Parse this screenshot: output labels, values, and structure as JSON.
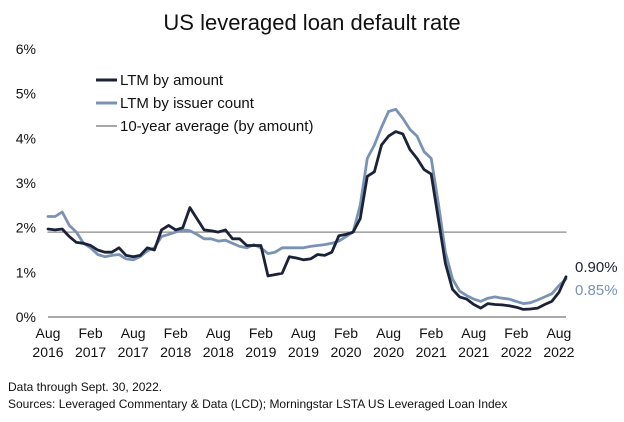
{
  "chart_data": {
    "type": "line",
    "title": "US leveraged loan default rate",
    "xlabel": "",
    "ylabel": "",
    "ylim": [
      0,
      6
    ],
    "y_ticks": [
      "0%",
      "1%",
      "2%",
      "3%",
      "4%",
      "5%",
      "6%"
    ],
    "x_range": [
      "2016-08",
      "2022-09"
    ],
    "x_ticks": [
      {
        "month": "Aug",
        "year": "2016",
        "date": "2016-08"
      },
      {
        "month": "Feb",
        "year": "2017",
        "date": "2017-02"
      },
      {
        "month": "Aug",
        "year": "2017",
        "date": "2017-08"
      },
      {
        "month": "Feb",
        "year": "2018",
        "date": "2018-02"
      },
      {
        "month": "Aug",
        "year": "2018",
        "date": "2018-08"
      },
      {
        "month": "Feb",
        "year": "2019",
        "date": "2019-02"
      },
      {
        "month": "Aug",
        "year": "2019",
        "date": "2019-08"
      },
      {
        "month": "Feb",
        "year": "2020",
        "date": "2020-02"
      },
      {
        "month": "Aug",
        "year": "2020",
        "date": "2020-08"
      },
      {
        "month": "Feb",
        "year": "2021",
        "date": "2021-02"
      },
      {
        "month": "Aug",
        "year": "2021",
        "date": "2021-08"
      },
      {
        "month": "Feb",
        "year": "2022",
        "date": "2022-02"
      },
      {
        "month": "Aug",
        "year": "2022",
        "date": "2022-08"
      }
    ],
    "grid": false,
    "legend_position": "top-left",
    "series": [
      {
        "name": "LTM by amount",
        "color": "#1b2238",
        "points": [
          [
            "2016-08",
            1.97
          ],
          [
            "2016-09",
            1.95
          ],
          [
            "2016-10",
            1.97
          ],
          [
            "2016-11",
            1.8
          ],
          [
            "2016-12",
            1.67
          ],
          [
            "2017-01",
            1.65
          ],
          [
            "2017-02",
            1.6
          ],
          [
            "2017-03",
            1.5
          ],
          [
            "2017-04",
            1.45
          ],
          [
            "2017-05",
            1.45
          ],
          [
            "2017-06",
            1.55
          ],
          [
            "2017-07",
            1.38
          ],
          [
            "2017-08",
            1.35
          ],
          [
            "2017-09",
            1.38
          ],
          [
            "2017-10",
            1.55
          ],
          [
            "2017-11",
            1.5
          ],
          [
            "2017-12",
            1.95
          ],
          [
            "2018-01",
            2.05
          ],
          [
            "2018-02",
            1.95
          ],
          [
            "2018-03",
            2.0
          ],
          [
            "2018-04",
            2.45
          ],
          [
            "2018-05",
            2.2
          ],
          [
            "2018-06",
            1.95
          ],
          [
            "2018-07",
            1.93
          ],
          [
            "2018-08",
            1.9
          ],
          [
            "2018-09",
            1.95
          ],
          [
            "2018-10",
            1.75
          ],
          [
            "2018-11",
            1.75
          ],
          [
            "2018-12",
            1.6
          ],
          [
            "2019-01",
            1.6
          ],
          [
            "2019-02",
            1.6
          ],
          [
            "2019-03",
            0.92
          ],
          [
            "2019-04",
            0.95
          ],
          [
            "2019-05",
            0.98
          ],
          [
            "2019-06",
            1.35
          ],
          [
            "2019-07",
            1.32
          ],
          [
            "2019-08",
            1.28
          ],
          [
            "2019-09",
            1.3
          ],
          [
            "2019-10",
            1.4
          ],
          [
            "2019-11",
            1.38
          ],
          [
            "2019-12",
            1.45
          ],
          [
            "2020-01",
            1.82
          ],
          [
            "2020-02",
            1.85
          ],
          [
            "2020-03",
            1.9
          ],
          [
            "2020-04",
            2.2
          ],
          [
            "2020-05",
            3.15
          ],
          [
            "2020-06",
            3.25
          ],
          [
            "2020-07",
            3.85
          ],
          [
            "2020-08",
            4.05
          ],
          [
            "2020-09",
            4.15
          ],
          [
            "2020-10",
            4.1
          ],
          [
            "2020-11",
            3.75
          ],
          [
            "2020-12",
            3.55
          ],
          [
            "2021-01",
            3.3
          ],
          [
            "2021-02",
            3.2
          ],
          [
            "2021-03",
            2.2
          ],
          [
            "2021-04",
            1.2
          ],
          [
            "2021-05",
            0.62
          ],
          [
            "2021-06",
            0.45
          ],
          [
            "2021-07",
            0.4
          ],
          [
            "2021-08",
            0.28
          ],
          [
            "2021-09",
            0.2
          ],
          [
            "2021-10",
            0.3
          ],
          [
            "2021-11",
            0.28
          ],
          [
            "2021-12",
            0.27
          ],
          [
            "2022-01",
            0.25
          ],
          [
            "2022-02",
            0.22
          ],
          [
            "2022-03",
            0.17
          ],
          [
            "2022-04",
            0.18
          ],
          [
            "2022-05",
            0.2
          ],
          [
            "2022-06",
            0.28
          ],
          [
            "2022-07",
            0.35
          ],
          [
            "2022-08",
            0.55
          ],
          [
            "2022-09",
            0.9
          ]
        ]
      },
      {
        "name": "LTM by issuer count",
        "color": "#7a93b5",
        "points": [
          [
            "2016-08",
            2.25
          ],
          [
            "2016-09",
            2.25
          ],
          [
            "2016-10",
            2.35
          ],
          [
            "2016-11",
            2.05
          ],
          [
            "2016-12",
            1.9
          ],
          [
            "2017-01",
            1.65
          ],
          [
            "2017-02",
            1.55
          ],
          [
            "2017-03",
            1.4
          ],
          [
            "2017-04",
            1.35
          ],
          [
            "2017-05",
            1.38
          ],
          [
            "2017-06",
            1.4
          ],
          [
            "2017-07",
            1.3
          ],
          [
            "2017-08",
            1.28
          ],
          [
            "2017-09",
            1.35
          ],
          [
            "2017-10",
            1.48
          ],
          [
            "2017-11",
            1.55
          ],
          [
            "2017-12",
            1.8
          ],
          [
            "2018-01",
            1.85
          ],
          [
            "2018-02",
            1.9
          ],
          [
            "2018-03",
            1.95
          ],
          [
            "2018-04",
            1.93
          ],
          [
            "2018-05",
            1.85
          ],
          [
            "2018-06",
            1.75
          ],
          [
            "2018-07",
            1.75
          ],
          [
            "2018-08",
            1.7
          ],
          [
            "2018-09",
            1.72
          ],
          [
            "2018-10",
            1.65
          ],
          [
            "2018-11",
            1.58
          ],
          [
            "2018-12",
            1.55
          ],
          [
            "2019-01",
            1.62
          ],
          [
            "2019-02",
            1.55
          ],
          [
            "2019-03",
            1.42
          ],
          [
            "2019-04",
            1.45
          ],
          [
            "2019-05",
            1.55
          ],
          [
            "2019-06",
            1.55
          ],
          [
            "2019-07",
            1.55
          ],
          [
            "2019-08",
            1.55
          ],
          [
            "2019-09",
            1.58
          ],
          [
            "2019-10",
            1.6
          ],
          [
            "2019-11",
            1.62
          ],
          [
            "2019-12",
            1.65
          ],
          [
            "2020-01",
            1.7
          ],
          [
            "2020-02",
            1.8
          ],
          [
            "2020-03",
            1.9
          ],
          [
            "2020-04",
            2.5
          ],
          [
            "2020-05",
            3.55
          ],
          [
            "2020-06",
            3.85
          ],
          [
            "2020-07",
            4.25
          ],
          [
            "2020-08",
            4.6
          ],
          [
            "2020-09",
            4.65
          ],
          [
            "2020-10",
            4.45
          ],
          [
            "2020-11",
            4.2
          ],
          [
            "2020-12",
            4.05
          ],
          [
            "2021-01",
            3.7
          ],
          [
            "2021-02",
            3.55
          ],
          [
            "2021-03",
            2.55
          ],
          [
            "2021-04",
            1.45
          ],
          [
            "2021-05",
            0.85
          ],
          [
            "2021-06",
            0.58
          ],
          [
            "2021-07",
            0.48
          ],
          [
            "2021-08",
            0.4
          ],
          [
            "2021-09",
            0.35
          ],
          [
            "2021-10",
            0.42
          ],
          [
            "2021-11",
            0.45
          ],
          [
            "2021-12",
            0.42
          ],
          [
            "2022-01",
            0.4
          ],
          [
            "2022-02",
            0.35
          ],
          [
            "2022-03",
            0.3
          ],
          [
            "2022-04",
            0.32
          ],
          [
            "2022-05",
            0.38
          ],
          [
            "2022-06",
            0.45
          ],
          [
            "2022-07",
            0.52
          ],
          [
            "2022-08",
            0.7
          ],
          [
            "2022-09",
            0.85
          ]
        ]
      },
      {
        "name": "10-year average (by amount)",
        "color": "#8a8a8a",
        "points": [
          [
            "2016-08",
            1.9
          ],
          [
            "2022-09",
            1.9
          ]
        ]
      }
    ],
    "end_labels": [
      {
        "text": "0.90%",
        "color": "#1b2238"
      },
      {
        "text": "0.85%",
        "color": "#7a93b5"
      }
    ]
  },
  "footnotes": {
    "line1": "Data through Sept. 30, 2022.",
    "line2": "Sources: Leveraged Commentary & Data (LCD); Morningstar LSTA US Leveraged Loan Index"
  }
}
